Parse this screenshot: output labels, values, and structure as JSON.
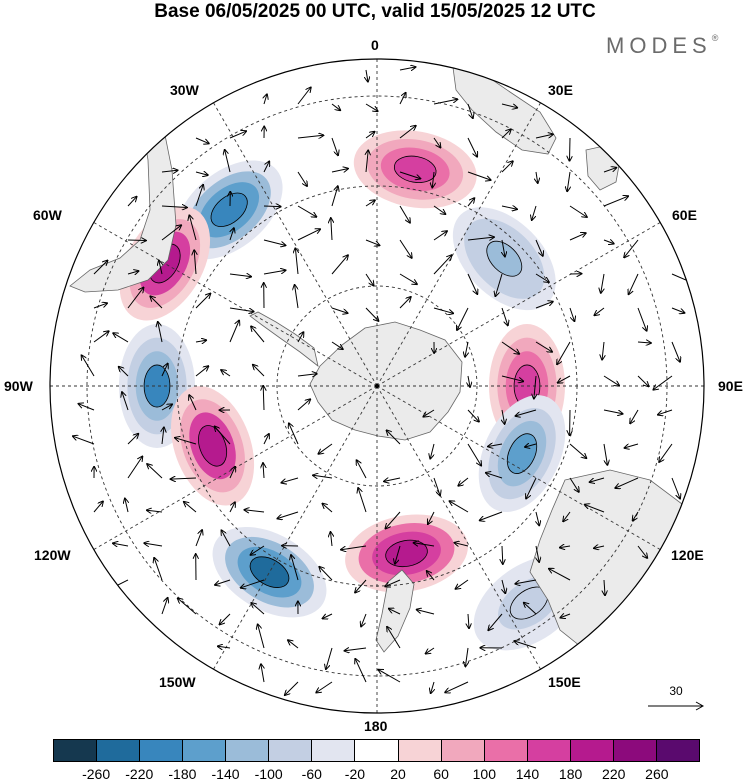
{
  "title": "Base 06/05/2025 00 UTC, valid 15/05/2025 12 UTC",
  "brand": "MODES",
  "brand_mark": "®",
  "longitude_labels": {
    "n0": "0",
    "n30e": "30E",
    "n60e": "60E",
    "n90e": "90E",
    "n120e": "120E",
    "n150e": "150E",
    "n180": "180",
    "n150w": "150W",
    "n120w": "120W",
    "n90w": "90W",
    "n60w": "60W",
    "n30w": "30W"
  },
  "reference_vector": {
    "label": "30"
  },
  "colorbar": {
    "tick_labels": [
      "-260",
      "-220",
      "-180",
      "-140",
      "-100",
      "-60",
      "-20",
      "20",
      "60",
      "100",
      "140",
      "180",
      "220",
      "260"
    ],
    "colors": [
      "#15384f",
      "#1f6b9c",
      "#3886bd",
      "#5d9fcc",
      "#9bbcd9",
      "#c3cfe3",
      "#e2e5f0",
      "#ffffff",
      "#f7d3d6",
      "#f1a8bd",
      "#ea6fa8",
      "#d53fa0",
      "#b51a8e",
      "#8c0a7c",
      "#5a0a6e"
    ]
  },
  "map": {
    "projection": "south-polar-stereographic",
    "field": "anomaly-shading-with-wind-vectors",
    "anomaly_centers": [
      {
        "sign": "negative",
        "lon": "~40W",
        "strength": -200
      },
      {
        "sign": "positive",
        "lon": "~10E",
        "strength": 180
      },
      {
        "sign": "negative",
        "lon": "~45E",
        "strength": -120
      },
      {
        "sign": "positive",
        "lon": "~60W",
        "strength": 200
      },
      {
        "sign": "negative",
        "lon": "~90W",
        "strength": -180
      },
      {
        "sign": "positive",
        "lon": "~90E",
        "strength": 160
      },
      {
        "sign": "positive",
        "lon": "~110W",
        "strength": 200
      },
      {
        "sign": "negative",
        "lon": "~115E",
        "strength": -140
      },
      {
        "sign": "negative",
        "lon": "~150W",
        "strength": -220
      },
      {
        "sign": "positive",
        "lon": "~170E",
        "strength": 220
      },
      {
        "sign": "negative",
        "lon": "~145E",
        "strength": -80
      }
    ]
  }
}
